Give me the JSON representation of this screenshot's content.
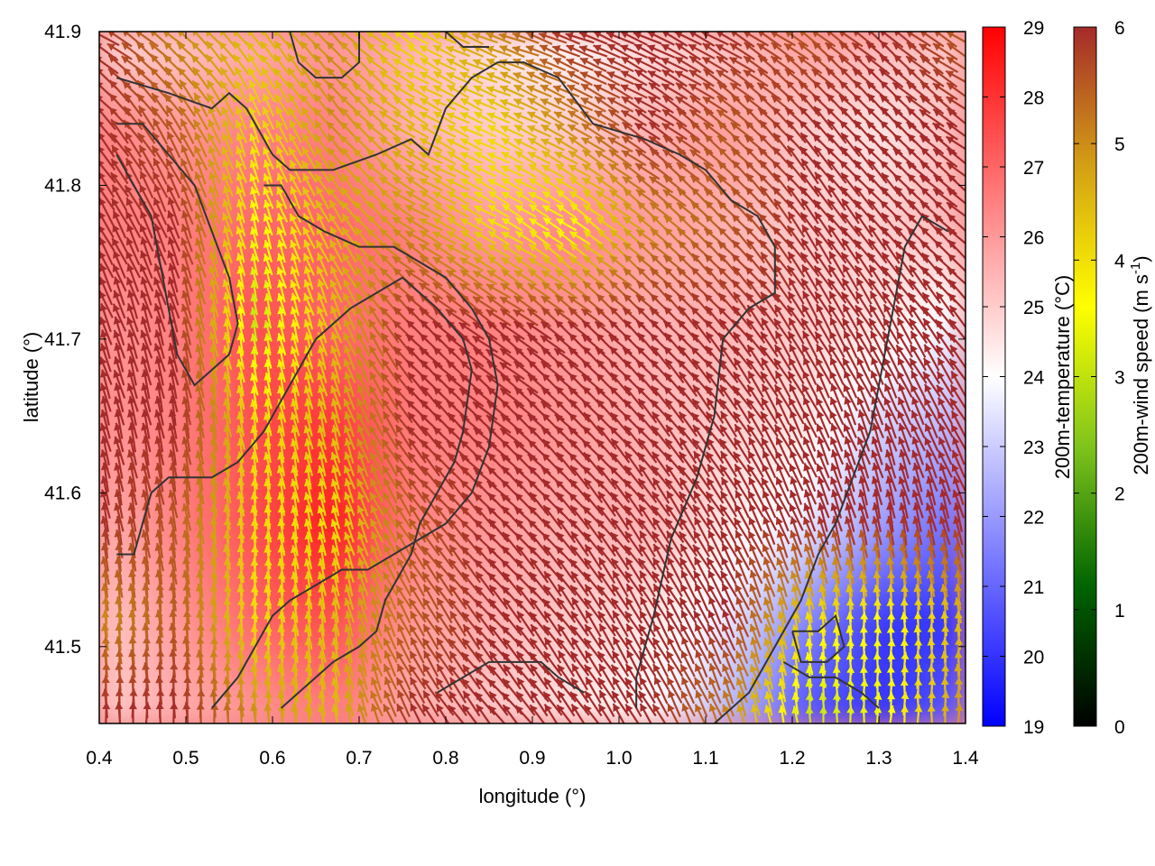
{
  "chart_data": {
    "type": "heatmap",
    "xlabel": "longitude (°)",
    "ylabel": "latitude (°)",
    "xlim": [
      0.4,
      1.4
    ],
    "ylim": [
      41.45,
      41.9
    ],
    "xticks": [
      0.4,
      0.5,
      0.6,
      0.7,
      0.8,
      0.9,
      1.0,
      1.1,
      1.2,
      1.3,
      1.4
    ],
    "yticks": [
      41.5,
      41.6,
      41.7,
      41.8,
      41.9
    ],
    "grid": false,
    "overlays": [
      "wind-vectors",
      "terrain-contours"
    ],
    "temperature_colorbar": {
      "label": "200m-temperature (°C)",
      "range": [
        19,
        29
      ],
      "ticks": [
        19,
        20,
        21,
        22,
        23,
        24,
        25,
        26,
        27,
        28,
        29
      ],
      "colors": [
        "#0000ff",
        "#ffffff",
        "#ff0000"
      ]
    },
    "wind_colorbar": {
      "label": "200m-wind speed (m s",
      "label_sup": "-1",
      "label_end": ")",
      "range": [
        0,
        6
      ],
      "ticks": [
        0,
        1,
        2,
        3,
        4,
        5,
        6
      ],
      "colors": [
        "#000000",
        "#006400",
        "#7fc41c",
        "#ffff00",
        "#d4a015",
        "#a52a2a"
      ]
    },
    "temperature_field": [
      [
        24.5,
        25.0,
        25.5,
        26.0,
        25.5,
        24.5,
        24.0,
        24.5,
        25.0,
        26.0,
        25.5,
        25.0
      ],
      [
        26.5,
        26.0,
        26.5,
        26.5,
        25.5,
        25.0,
        25.0,
        25.5,
        26.0,
        25.0,
        24.5,
        25.5
      ],
      [
        26.5,
        26.5,
        27.0,
        27.0,
        26.5,
        26.0,
        26.5,
        26.0,
        25.5,
        25.0,
        25.0,
        25.5
      ],
      [
        26.0,
        26.5,
        27.5,
        27.0,
        26.5,
        26.5,
        26.0,
        25.5,
        25.5,
        25.0,
        24.5,
        23.5
      ],
      [
        26.0,
        26.5,
        27.5,
        28.0,
        26.5,
        26.5,
        26.0,
        25.5,
        25.0,
        24.5,
        23.0,
        22.5
      ],
      [
        25.5,
        26.5,
        27.5,
        28.5,
        26.5,
        26.0,
        25.5,
        25.5,
        24.5,
        23.5,
        22.0,
        21.0
      ],
      [
        25.0,
        26.0,
        27.0,
        27.5,
        26.0,
        25.5,
        25.0,
        24.5,
        23.5,
        21.5,
        20.0,
        20.0
      ],
      [
        25.0,
        25.5,
        26.0,
        26.5,
        25.5,
        25.0,
        24.5,
        24.0,
        22.5,
        20.5,
        20.0,
        21.0
      ]
    ],
    "wind_speed_field": [
      [
        6.0,
        5.0,
        4.5,
        5.0,
        4.0,
        5.0,
        6.0,
        6.0,
        6.0,
        5.5,
        6.0,
        5.5
      ],
      [
        6.0,
        5.5,
        4.0,
        5.0,
        4.5,
        4.0,
        5.0,
        6.0,
        5.5,
        6.0,
        6.0,
        6.0
      ],
      [
        6.0,
        6.0,
        3.5,
        4.5,
        5.0,
        4.0,
        3.5,
        5.0,
        5.5,
        6.0,
        6.0,
        6.0
      ],
      [
        6.0,
        6.0,
        3.0,
        4.5,
        6.0,
        6.0,
        6.0,
        6.0,
        6.0,
        6.0,
        6.0,
        6.0
      ],
      [
        6.0,
        6.0,
        4.0,
        4.5,
        6.0,
        6.0,
        6.0,
        6.0,
        6.0,
        6.0,
        6.0,
        6.0
      ],
      [
        6.0,
        5.5,
        4.0,
        4.0,
        5.5,
        6.0,
        6.0,
        6.0,
        6.0,
        6.0,
        6.0,
        6.0
      ],
      [
        5.0,
        5.5,
        4.0,
        4.5,
        5.5,
        6.0,
        6.0,
        6.0,
        6.0,
        4.0,
        3.5,
        4.5
      ],
      [
        6.0,
        6.0,
        5.0,
        4.5,
        6.0,
        6.0,
        6.0,
        6.0,
        5.0,
        3.0,
        3.5,
        5.0
      ]
    ],
    "wind_direction_from_north_deg": [
      [
        300,
        310,
        320,
        315,
        300,
        290,
        290,
        295,
        300,
        305,
        310,
        300
      ],
      [
        320,
        330,
        340,
        320,
        300,
        295,
        300,
        305,
        310,
        320,
        315,
        305
      ],
      [
        330,
        340,
        345,
        330,
        300,
        300,
        305,
        310,
        315,
        325,
        320,
        310
      ],
      [
        340,
        345,
        350,
        340,
        315,
        305,
        310,
        315,
        320,
        330,
        330,
        320
      ],
      [
        345,
        350,
        350,
        345,
        320,
        310,
        315,
        320,
        325,
        335,
        340,
        330
      ],
      [
        350,
        350,
        355,
        345,
        325,
        315,
        320,
        325,
        330,
        340,
        350,
        345
      ],
      [
        355,
        355,
        355,
        350,
        330,
        320,
        325,
        330,
        335,
        350,
        0,
        355
      ],
      [
        0,
        0,
        355,
        350,
        330,
        320,
        325,
        330,
        340,
        355,
        5,
        0
      ]
    ],
    "contours": [
      [
        [
          0.42,
          41.87
        ],
        [
          0.48,
          41.86
        ],
        [
          0.53,
          41.85
        ],
        [
          0.55,
          41.86
        ],
        [
          0.57,
          41.85
        ],
        [
          0.6,
          41.82
        ],
        [
          0.62,
          41.81
        ],
        [
          0.67,
          41.81
        ],
        [
          0.72,
          41.82
        ],
        [
          0.76,
          41.83
        ],
        [
          0.78,
          41.82
        ],
        [
          0.8,
          41.85
        ],
        [
          0.83,
          41.87
        ],
        [
          0.86,
          41.88
        ],
        [
          0.89,
          41.88
        ],
        [
          0.93,
          41.87
        ],
        [
          0.97,
          41.84
        ],
        [
          1.03,
          41.83
        ],
        [
          1.07,
          41.82
        ],
        [
          1.1,
          41.81
        ],
        [
          1.13,
          41.79
        ],
        [
          1.16,
          41.78
        ],
        [
          1.18,
          41.76
        ],
        [
          1.18,
          41.73
        ],
        [
          1.15,
          41.72
        ],
        [
          1.12,
          41.7
        ],
        [
          1.11,
          41.65
        ],
        [
          1.09,
          41.61
        ],
        [
          1.06,
          41.57
        ],
        [
          1.04,
          41.52
        ],
        [
          1.02,
          41.48
        ],
        [
          1.02,
          41.46
        ]
      ],
      [
        [
          0.42,
          41.56
        ],
        [
          0.44,
          41.56
        ],
        [
          0.45,
          41.58
        ],
        [
          0.46,
          41.6
        ],
        [
          0.48,
          41.61
        ],
        [
          0.53,
          41.61
        ],
        [
          0.56,
          41.62
        ],
        [
          0.59,
          41.64
        ],
        [
          0.61,
          41.66
        ],
        [
          0.63,
          41.68
        ],
        [
          0.65,
          41.7
        ],
        [
          0.67,
          41.71
        ],
        [
          0.69,
          41.72
        ],
        [
          0.72,
          41.73
        ],
        [
          0.75,
          41.74
        ],
        [
          0.77,
          41.73
        ],
        [
          0.79,
          41.72
        ],
        [
          0.82,
          41.7
        ],
        [
          0.83,
          41.68
        ],
        [
          0.82,
          41.64
        ],
        [
          0.81,
          41.62
        ],
        [
          0.79,
          41.6
        ],
        [
          0.77,
          41.58
        ],
        [
          0.76,
          41.56
        ],
        [
          0.74,
          41.54
        ],
        [
          0.73,
          41.53
        ],
        [
          0.72,
          41.51
        ],
        [
          0.7,
          41.5
        ],
        [
          0.67,
          41.49
        ],
        [
          0.65,
          41.48
        ],
        [
          0.63,
          41.47
        ],
        [
          0.61,
          41.46
        ]
      ],
      [
        [
          0.42,
          41.84
        ],
        [
          0.45,
          41.84
        ],
        [
          0.48,
          41.82
        ],
        [
          0.51,
          41.8
        ],
        [
          0.53,
          41.77
        ],
        [
          0.55,
          41.74
        ],
        [
          0.56,
          41.71
        ],
        [
          0.55,
          41.69
        ],
        [
          0.53,
          41.68
        ],
        [
          0.51,
          41.67
        ],
        [
          0.49,
          41.69
        ],
        [
          0.48,
          41.72
        ],
        [
          0.47,
          41.75
        ],
        [
          0.46,
          41.78
        ],
        [
          0.44,
          41.8
        ],
        [
          0.42,
          41.82
        ]
      ],
      [
        [
          0.59,
          41.8
        ],
        [
          0.61,
          41.8
        ],
        [
          0.63,
          41.78
        ],
        [
          0.66,
          41.77
        ],
        [
          0.7,
          41.76
        ],
        [
          0.74,
          41.76
        ],
        [
          0.77,
          41.75
        ],
        [
          0.8,
          41.74
        ],
        [
          0.83,
          41.72
        ],
        [
          0.85,
          41.7
        ],
        [
          0.86,
          41.67
        ],
        [
          0.85,
          41.63
        ],
        [
          0.83,
          41.6
        ],
        [
          0.8,
          41.58
        ],
        [
          0.77,
          41.57
        ],
        [
          0.74,
          41.56
        ],
        [
          0.71,
          41.55
        ],
        [
          0.68,
          41.55
        ],
        [
          0.65,
          41.54
        ],
        [
          0.62,
          41.53
        ],
        [
          0.6,
          41.52
        ],
        [
          0.58,
          41.5
        ],
        [
          0.56,
          41.48
        ],
        [
          0.53,
          41.46
        ]
      ],
      [
        [
          1.38,
          41.77
        ],
        [
          1.35,
          41.78
        ],
        [
          1.33,
          41.76
        ],
        [
          1.32,
          41.73
        ],
        [
          1.31,
          41.7
        ],
        [
          1.3,
          41.67
        ],
        [
          1.29,
          41.64
        ],
        [
          1.27,
          41.61
        ],
        [
          1.25,
          41.58
        ],
        [
          1.23,
          41.56
        ],
        [
          1.21,
          41.53
        ],
        [
          1.19,
          41.51
        ],
        [
          1.17,
          41.49
        ],
        [
          1.15,
          41.47
        ],
        [
          1.13,
          41.46
        ],
        [
          1.11,
          41.45
        ]
      ],
      [
        [
          1.2,
          41.51
        ],
        [
          1.23,
          41.51
        ],
        [
          1.25,
          41.52
        ],
        [
          1.26,
          41.5
        ],
        [
          1.24,
          41.49
        ],
        [
          1.21,
          41.49
        ],
        [
          1.2,
          41.51
        ]
      ],
      [
        [
          0.79,
          41.47
        ],
        [
          0.82,
          41.48
        ],
        [
          0.85,
          41.49
        ],
        [
          0.88,
          41.49
        ],
        [
          0.91,
          41.49
        ],
        [
          0.93,
          41.48
        ],
        [
          0.96,
          41.47
        ]
      ],
      [
        [
          0.62,
          41.9
        ],
        [
          0.63,
          41.88
        ],
        [
          0.65,
          41.87
        ],
        [
          0.68,
          41.87
        ],
        [
          0.7,
          41.88
        ],
        [
          0.7,
          41.9
        ]
      ],
      [
        [
          0.8,
          41.9
        ],
        [
          0.82,
          41.89
        ],
        [
          0.85,
          41.89
        ]
      ],
      [
        [
          1.19,
          41.49
        ],
        [
          1.22,
          41.48
        ],
        [
          1.25,
          41.48
        ],
        [
          1.28,
          41.47
        ],
        [
          1.3,
          41.46
        ]
      ]
    ]
  }
}
